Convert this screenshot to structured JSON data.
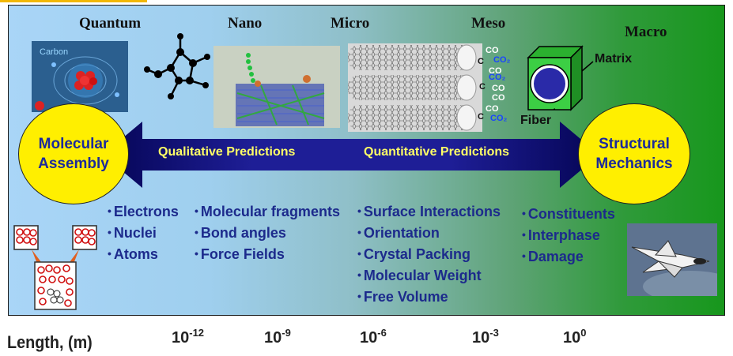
{
  "scales": [
    "Quantum",
    "Nano",
    "Micro",
    "Meso",
    "Macro"
  ],
  "left_circle": "Molecular Assembly",
  "right_circle": "Structural Mechanics",
  "arrow_left": "Qualitative Predictions",
  "arrow_right": "Quantitative Predictions",
  "carbon_label": "Carbon",
  "composite": {
    "matrix": "Matrix",
    "fiber": "Fiber"
  },
  "co_labels": [
    "CO",
    "CO",
    "CO",
    "CO",
    "CO",
    "CO₂",
    "CO₂",
    "CO₂",
    "C",
    "C",
    "C"
  ],
  "bullet_groups": [
    [
      "Electrons",
      "Nuclei",
      "Atoms"
    ],
    [
      "Molecular fragments",
      "Bond angles",
      "Force Fields"
    ],
    [
      "Surface Interactions",
      "Orientation",
      "Crystal Packing",
      "Molecular Weight",
      "Free Volume"
    ],
    [
      "Constituents",
      "Interphase",
      "Damage"
    ]
  ],
  "length_axis": {
    "label": "Length, (m)",
    "ticks": [
      {
        "base": "10",
        "exp": "-12"
      },
      {
        "base": "10",
        "exp": "-9"
      },
      {
        "base": "10",
        "exp": "-6"
      },
      {
        "base": "10",
        "exp": "-3"
      },
      {
        "base": "10",
        "exp": "0"
      }
    ]
  },
  "colors": {
    "circle_fill": "#ffef00",
    "circle_text": "#1c2a9c",
    "arrow": "#1a1a8c",
    "arrow_text": "#ffff66",
    "bullet_text": "#1c2a8c"
  }
}
